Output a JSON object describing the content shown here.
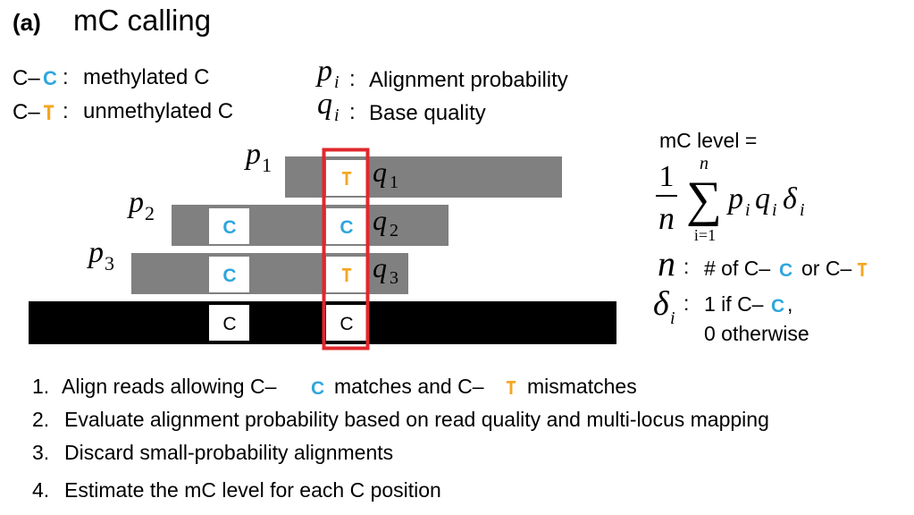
{
  "panel_label": "(a)",
  "title": "mC calling",
  "colors": {
    "methylated_c": "#2FA6DC",
    "unmethylated_t": "#F5A623",
    "read_gray": "#808080",
    "reference_black": "#000000",
    "highlight_red": "#E0282E"
  },
  "legend": {
    "cc_prefix": "C–",
    "cc_base": "C",
    "cc_sep": ":",
    "cc_label": "methylated C",
    "ct_prefix": "C–",
    "ct_base": "T",
    "ct_sep": ":",
    "ct_label": "unmethylated C",
    "p_symbol": "p",
    "p_sub": "i",
    "p_sep": ":",
    "p_label": "Alignment probability",
    "q_symbol": "q",
    "q_sub": "i",
    "q_sep": ":",
    "q_label": "Base quality"
  },
  "reads": [
    {
      "p_symbol": "p",
      "p_sub": "1",
      "q_symbol": "q",
      "q_sub": "1",
      "bases": [
        "T"
      ]
    },
    {
      "p_symbol": "p",
      "p_sub": "2",
      "q_symbol": "q",
      "q_sub": "2",
      "bases": [
        "C",
        "C"
      ]
    },
    {
      "p_symbol": "p",
      "p_sub": "3",
      "q_symbol": "q",
      "q_sub": "3",
      "bases": [
        "C",
        "T"
      ]
    }
  ],
  "reference": {
    "bases": [
      "C",
      "C"
    ]
  },
  "formula": {
    "label": "mC level =",
    "numerator": "1",
    "denominator": "n",
    "sum_upper": "n",
    "sum_lower": "i=1",
    "sigma": "∑",
    "term_p": "p",
    "term_q": "q",
    "term_delta": "δ",
    "term_sub": "i"
  },
  "definitions": {
    "n_symbol": "n",
    "n_sep": ":",
    "n_text1": "# of C–",
    "n_base1": "C",
    "n_text2": "or C–",
    "n_base2": "T",
    "delta_symbol": "δ",
    "delta_sub": "i",
    "delta_sep": ":",
    "delta_text1": "1 if C–",
    "delta_base1": "C",
    "delta_text_comma": ",",
    "delta_text2": "0 otherwise"
  },
  "steps": [
    {
      "number": "1.",
      "text_a": "Align reads allowing C–",
      "base_a": "C",
      "text_b": "matches and C–",
      "base_b": "T",
      "text_c": "mismatches"
    },
    {
      "number": "2.",
      "text": "Evaluate alignment probability based on read quality and multi-locus mapping"
    },
    {
      "number": "3.",
      "text": "Discard small-probability alignments"
    },
    {
      "number": "4.",
      "text_a": "Estimate the mC level for each C position"
    }
  ]
}
